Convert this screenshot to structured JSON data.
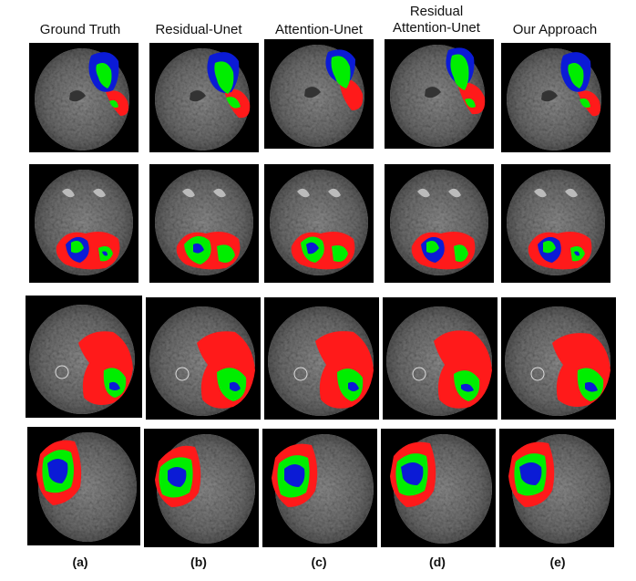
{
  "columns": [
    {
      "title": "Ground Truth",
      "label": "(a)"
    },
    {
      "title": "Residual-Unet",
      "label": "(b)"
    },
    {
      "title": "Attention-Unet",
      "label": "(c)"
    },
    {
      "title_line1": "Residual",
      "title_line2": "Attention-Unet",
      "label": "(d)"
    },
    {
      "title": "Our Approach",
      "label": "(e)"
    }
  ],
  "segmentation_colors": {
    "edema": "#ff1a1a",
    "enhancing_tumor": "#00ee00",
    "necrotic_core": "#0b1bd6",
    "brain_tissue": "#7a7a7a",
    "background": "#000000"
  }
}
